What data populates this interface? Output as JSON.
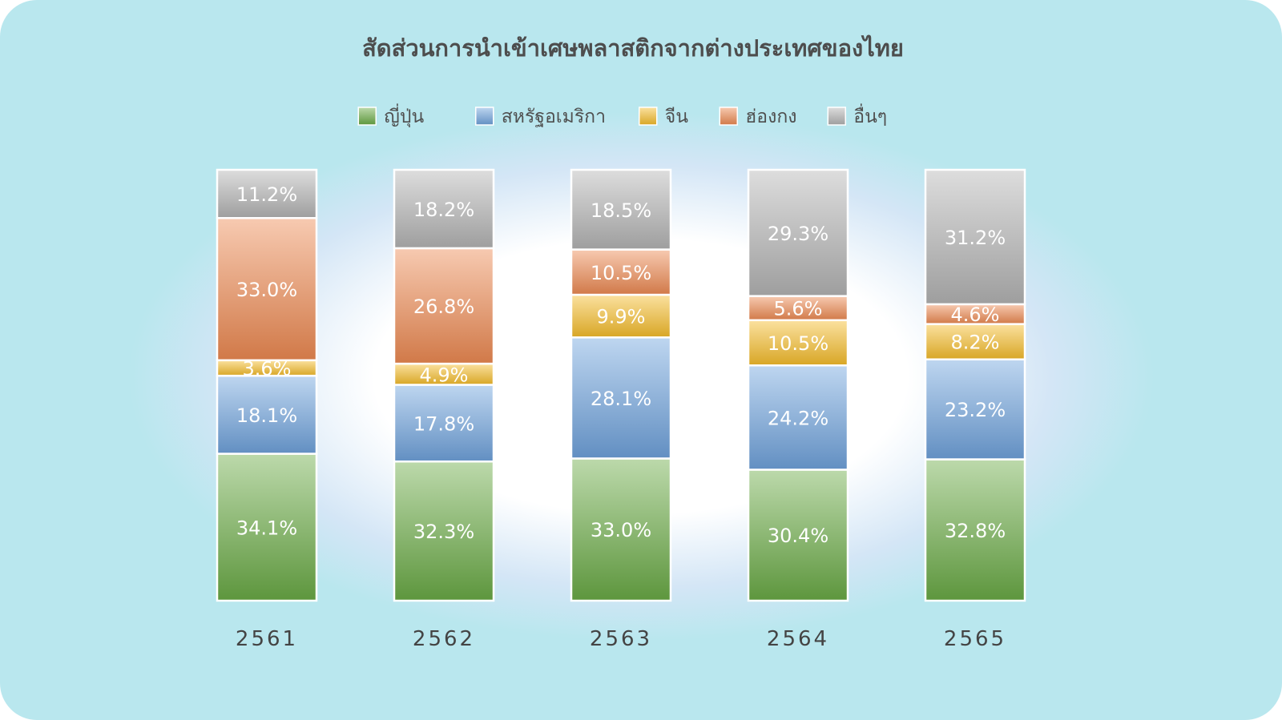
{
  "chart_data": {
    "type": "bar",
    "stacked": true,
    "percent": true,
    "title": "สัดส่วนการนำเข้าเศษพลาสติกจากต่างประเทศของไทย",
    "categories": [
      "2561",
      "2562",
      "2563",
      "2564",
      "2565"
    ],
    "series": [
      {
        "name": "ญี่ปุ่น",
        "color": "#6aab45",
        "values": [
          34.1,
          32.3,
          33.0,
          30.4,
          32.8
        ],
        "labels": [
          "34.1%",
          "32.3%",
          "33.0%",
          "30.4%",
          "32.8%"
        ]
      },
      {
        "name": "สหรัฐอเมริกา",
        "color": "#6fa3dd",
        "values": [
          18.1,
          17.8,
          28.1,
          24.2,
          23.2
        ],
        "labels": [
          "18.1%",
          "17.8%",
          "28.1%",
          "24.2%",
          "23.2%"
        ]
      },
      {
        "name": "จีน",
        "color": "#f6bd2a",
        "values": [
          3.6,
          4.9,
          9.9,
          10.5,
          8.2
        ],
        "labels": [
          "3.6%",
          "4.9%",
          "9.9%",
          "10.5%",
          "8.2%"
        ]
      },
      {
        "name": "ฮ่องกง",
        "color": "#ee8a52",
        "values": [
          33.0,
          26.8,
          10.5,
          5.6,
          4.6
        ],
        "labels": [
          "33.0%",
          "26.8%",
          "10.5%",
          "5.6%",
          "4.6%"
        ]
      },
      {
        "name": "อื่นๆ",
        "color": "#b4b4b4",
        "values": [
          11.2,
          18.2,
          18.5,
          29.3,
          31.2
        ],
        "labels": [
          "11.2%",
          "18.2%",
          "18.5%",
          "29.3%",
          "31.2%"
        ]
      }
    ],
    "legend": "top",
    "grid": false,
    "ylim": [
      0,
      100
    ]
  }
}
